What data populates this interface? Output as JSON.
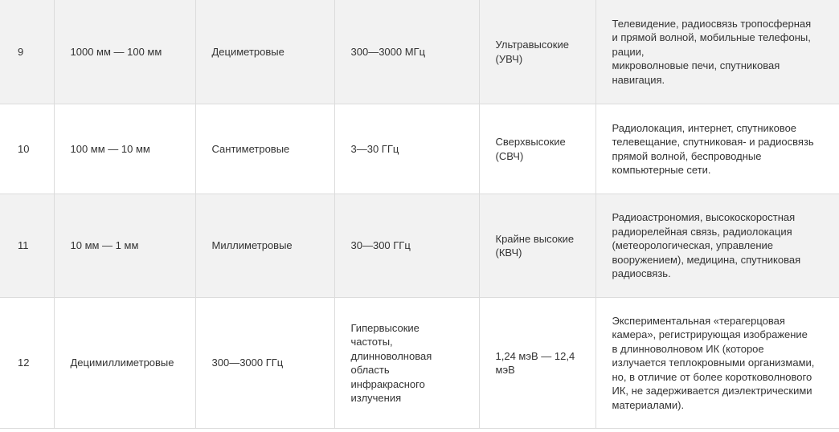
{
  "table": {
    "rows": [
      {
        "num": "9",
        "wavelength": "1000 мм — 100 мм",
        "name": "Дециметровые",
        "freq": "300—3000 МГц",
        "band": "Ультравысокие\n(УВЧ)",
        "use": "Телевидение, радиосвязь тропосферная\nи прямой волной, мобильные телефоны,\nрации,\nмикроволновые печи, спутниковая\nнавигация."
      },
      {
        "num": "10",
        "wavelength": "100 мм — 10 мм",
        "name": "Сантиметровые",
        "freq": "3—30 ГГц",
        "band": "Сверхвысокие\n(СВЧ)",
        "use": "Радиолокация, интернет, спутниковое\nтелевещание, спутниковая- и радиосвязь\nпрямой волной, беспроводные\nкомпьютерные сети."
      },
      {
        "num": "11",
        "wavelength": "10 мм — 1 мм",
        "name": "Миллиметровые",
        "freq": "30—300 ГГц",
        "band": "Крайне высокие\n(КВЧ)",
        "use": "Радиоастрономия, высокоскоростная\nрадиорелейная связь, радиолокация\n(метеорологическая, управление\nвооружением), медицина, спутниковая\nрадиосвязь."
      },
      {
        "num": "12",
        "wavelength": "Децимиллиметровые",
        "name": "300—3000 ГГц",
        "freq": "Гипервысокие\nчастоты,\nдлинноволновая\nобласть\nинфракрасного\nизлучения",
        "band": "1,24 мэВ — 12,4\nмэВ",
        "use": "Экспериментальная «терагерцовая\nкамера», регистрирующая изображение\nв длинноволновом ИК (которое\nизлучается теплокровными организмами,\nно, в отличие от более коротковолнового\nИК, не задерживается диэлектрическими\nматериалами)."
      }
    ]
  }
}
